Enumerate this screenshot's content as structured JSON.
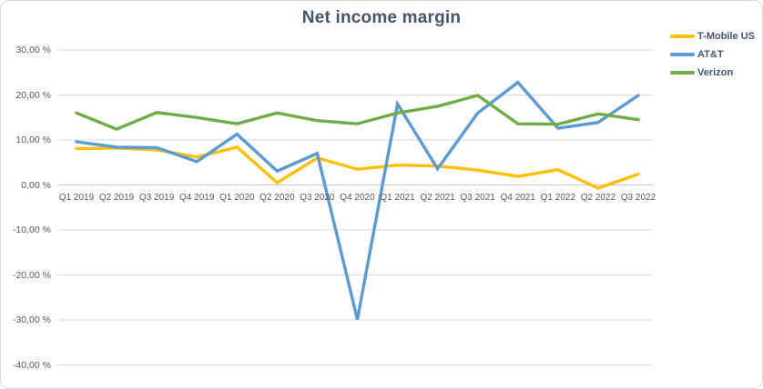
{
  "chart_data": {
    "type": "line",
    "title": "Net income margin",
    "categories": [
      "Q1 2019",
      "Q2 2019",
      "Q3 2019",
      "Q4 2019",
      "Q1 2020",
      "Q2 2020",
      "Q3 2020",
      "Q4 2020",
      "Q1 2021",
      "Q2 2021",
      "Q3 2021",
      "Q4 2021",
      "Q1 2022",
      "Q2 2022",
      "Q3 2022"
    ],
    "series": [
      {
        "name": "T-Mobile US",
        "color": "#FFC000",
        "values": [
          8.1,
          8.2,
          7.8,
          6.2,
          8.4,
          0.5,
          6.0,
          3.5,
          4.4,
          4.2,
          3.3,
          1.9,
          3.4,
          -0.7,
          2.4
        ]
      },
      {
        "name": "AT&T",
        "color": "#5B9BD5",
        "values": [
          9.6,
          8.4,
          8.3,
          5.2,
          11.3,
          3.1,
          7.0,
          -29.9,
          18.0,
          3.6,
          16.0,
          22.8,
          12.6,
          13.9,
          19.9
        ]
      },
      {
        "name": "Verizon",
        "color": "#70AD47",
        "values": [
          16.0,
          12.4,
          16.1,
          15.0,
          13.6,
          16.0,
          14.3,
          13.6,
          16.0,
          17.5,
          19.9,
          13.6,
          13.5,
          15.8,
          14.5
        ]
      }
    ],
    "y_axis": {
      "max": 30,
      "min": -40,
      "step": 10,
      "tick_labels": [
        "30,00 %",
        "20,00 %",
        "10,00 %",
        "0,00 %",
        "-10,00 %",
        "-20,00 %",
        "-30,00 %",
        "-40,00 %"
      ]
    },
    "unit": "%",
    "grid": "horizontal",
    "legend_position": "top-right",
    "colors": {
      "gridline": "#D9D9D9",
      "zero_line": "#C6C6C6",
      "axis_text": "#595959",
      "title_text": "#44546A"
    }
  }
}
